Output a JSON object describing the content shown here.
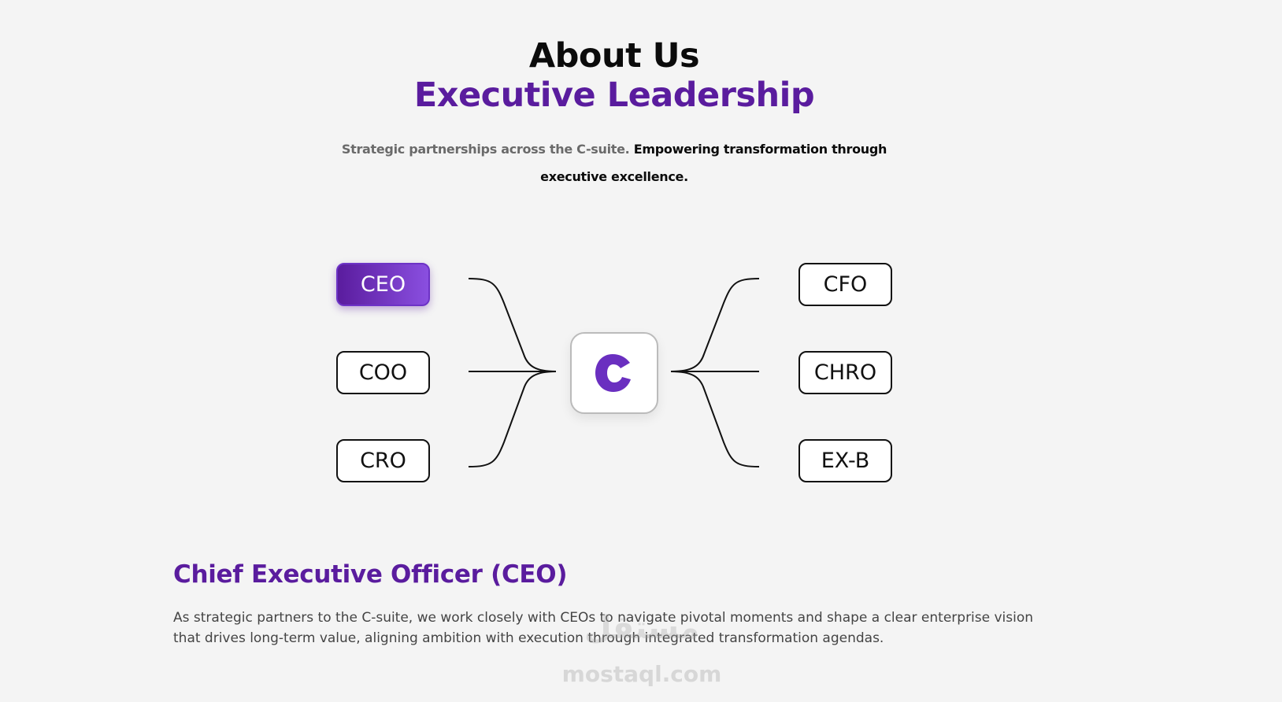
{
  "header": {
    "title": "About Us",
    "subtitle": "Executive Leadership",
    "description_muted": "Strategic partnerships across the C-suite.",
    "description_strong": "Empowering transformation through executive excellence."
  },
  "diagram": {
    "left_nodes": [
      "CEO",
      "COO",
      "CRO"
    ],
    "right_nodes": [
      "CFO",
      "CHRO",
      "EX-B"
    ]
  },
  "detail": {
    "title": "Chief Executive Officer (CEO)",
    "text": "As strategic partners to the C-suite, we work closely with CEOs to navigate pivotal moments and shape a clear enterprise vision that drives long-term value, aligning ambition with execution through integrated transformation agendas."
  },
  "watermark": {
    "arabic": "مستقل",
    "latin": "mostaql.com"
  }
}
